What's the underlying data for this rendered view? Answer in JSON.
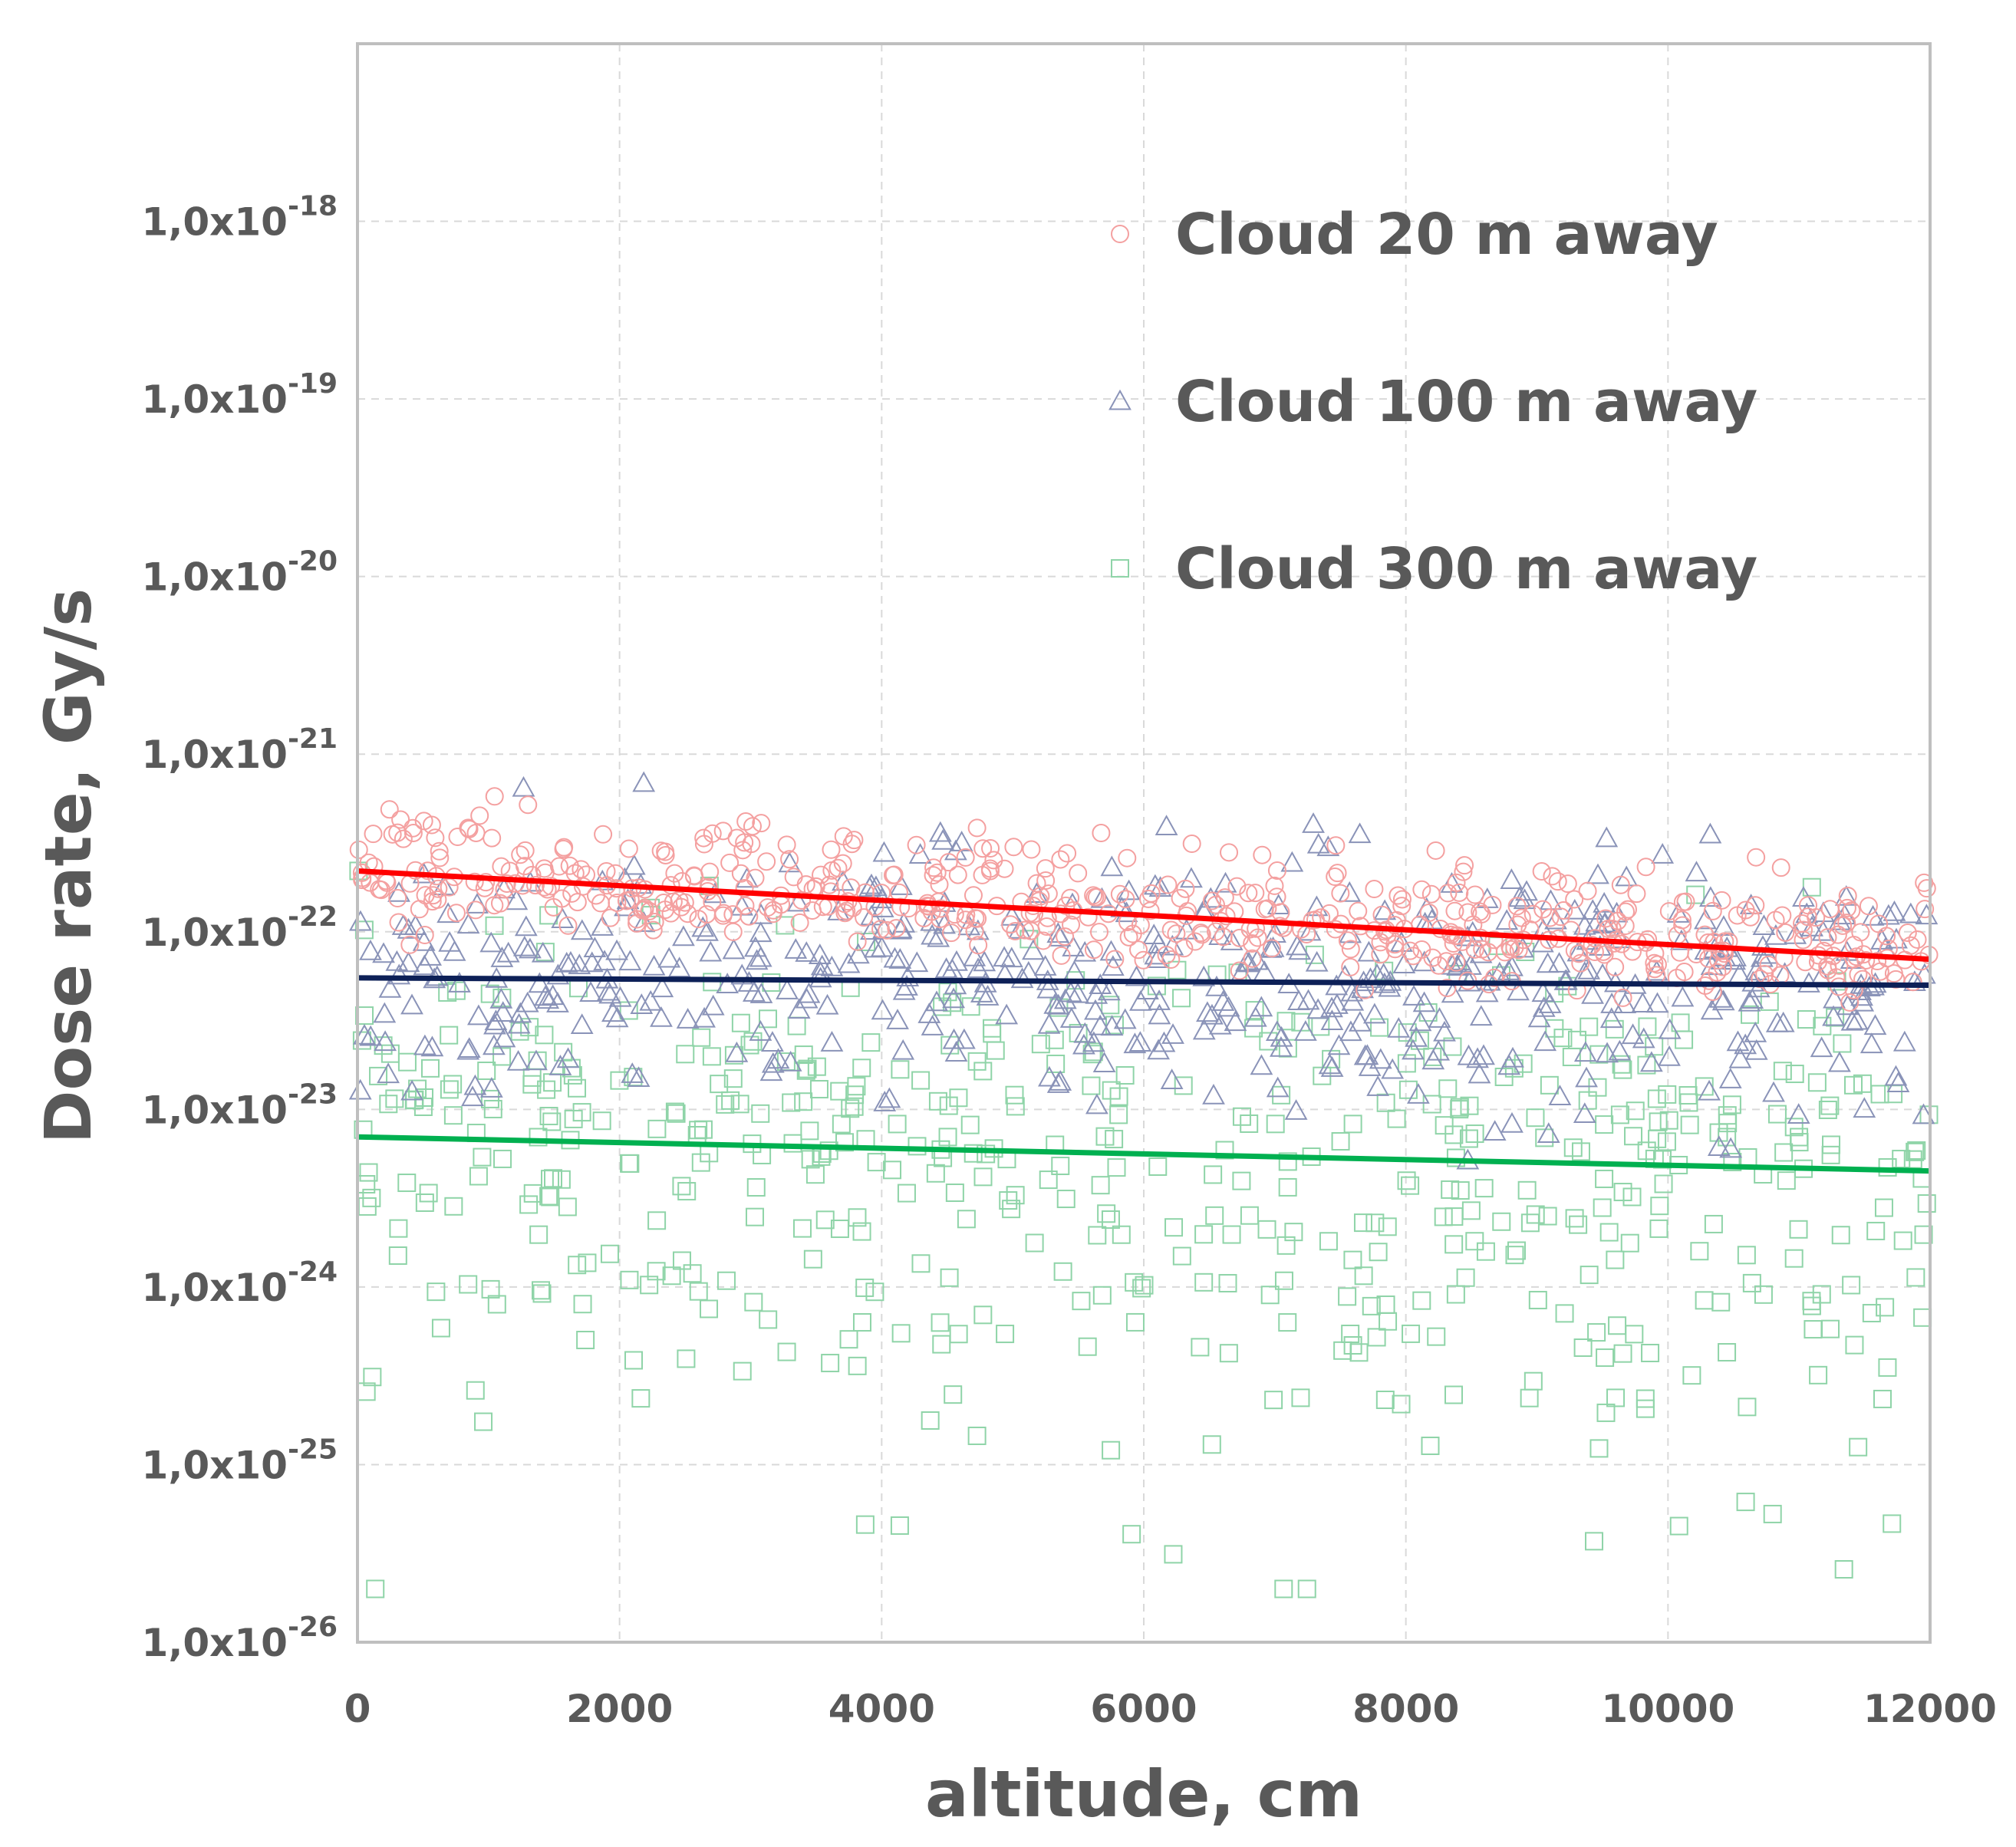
{
  "chart_data": {
    "type": "scatter",
    "title": "",
    "xlabel": "altitude, cm",
    "ylabel": "Dose rate, Gy/s",
    "x_range": [
      0,
      12000
    ],
    "y_range": [
      1e-26,
      1e-17
    ],
    "y_scale": "log",
    "x_ticks": [
      "0",
      "2000",
      "4000",
      "6000",
      "8000",
      "10000",
      "12000"
    ],
    "y_ticks": [
      {
        "mantissa": "1,0x10",
        "exp": "-26"
      },
      {
        "mantissa": "1,0x10",
        "exp": "-25"
      },
      {
        "mantissa": "1,0x10",
        "exp": "-24"
      },
      {
        "mantissa": "1,0x10",
        "exp": "-23"
      },
      {
        "mantissa": "1,0x10",
        "exp": "-22"
      },
      {
        "mantissa": "1,0x10",
        "exp": "-21"
      },
      {
        "mantissa": "1,0x10",
        "exp": "-20"
      },
      {
        "mantissa": "1,0x10",
        "exp": "-19"
      },
      {
        "mantissa": "1,0x10",
        "exp": "-18"
      }
    ],
    "grid": true,
    "legend_position": "top-right",
    "series": [
      {
        "name": "Cloud 20 m away",
        "marker": "circle",
        "color": "#ff0000",
        "marker_color": "#f4a0a0",
        "count": 550,
        "spread_log10": 0.2,
        "trend": {
          "x": [
            0,
            12000
          ],
          "y": [
            2.2e-22,
            7e-23
          ]
        }
      },
      {
        "name": "Cloud 100 m away",
        "marker": "triangle",
        "color": "#0d2057",
        "marker_color": "#8a93b8",
        "count": 550,
        "spread_log10": 0.35,
        "trend": {
          "x": [
            0,
            12000
          ],
          "y": [
            5.5e-23,
            5e-23
          ]
        }
      },
      {
        "name": "Cloud 300 m away",
        "marker": "square",
        "color": "#00b050",
        "marker_color": "#8fd4a8",
        "count": 550,
        "spread_log10": 0.55,
        "trend": {
          "x": [
            0,
            12000
          ],
          "y": [
            7e-24,
            4.5e-24
          ]
        }
      }
    ]
  }
}
